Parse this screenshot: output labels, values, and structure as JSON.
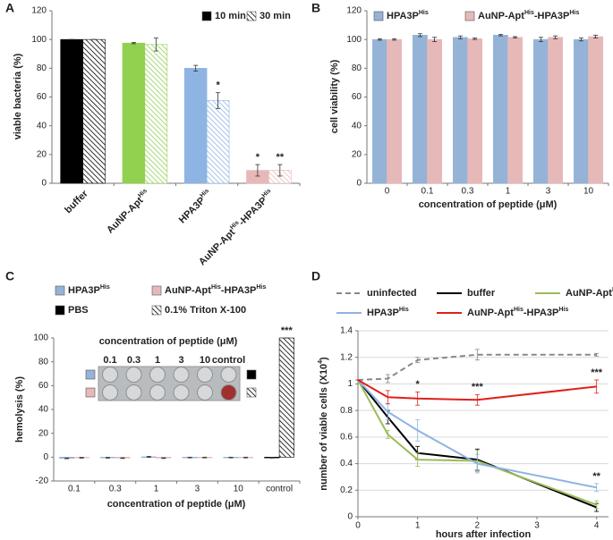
{
  "chart_data": [
    {
      "type": "bar",
      "panel": "A",
      "ylabel": "viable bacteria (%)",
      "categories": [
        "buffer",
        [
          "AuNP-Apt",
          "His"
        ],
        [
          "HPA3P",
          "His"
        ],
        [
          "AuNP-Apt",
          "His",
          "-HPA3P",
          "His"
        ]
      ],
      "series": [
        {
          "name": "10 min",
          "color": "#000000",
          "colors": [
            "#000000",
            "#92d050",
            "#8eb4e3",
            "#e6b9b8"
          ],
          "values": [
            100,
            97.5,
            80,
            9
          ],
          "errors": [
            0,
            0.5,
            2,
            4
          ],
          "annotations": [
            null,
            null,
            null,
            "*"
          ]
        },
        {
          "name": "30 min",
          "color": "#000000",
          "hatch": true,
          "colors": [
            "#000000",
            "#92d050",
            "#8eb4e3",
            "#e6b9b8"
          ],
          "values": [
            100,
            96.5,
            57.5,
            9
          ],
          "errors": [
            0,
            4.5,
            5.5,
            4
          ],
          "annotations": [
            null,
            null,
            "*",
            "**"
          ]
        }
      ],
      "ylim": [
        0,
        120
      ],
      "yticks": [
        0,
        20,
        40,
        60,
        80,
        100,
        120
      ]
    },
    {
      "type": "bar",
      "panel": "B",
      "ylabel": "cell viability (%)",
      "xlabel": "concentration of peptide (μM)",
      "categories": [
        "0",
        "0.1",
        "0.3",
        "1",
        "3",
        "10"
      ],
      "series": [
        {
          "name": [
            "HPA3P",
            "His"
          ],
          "color": "#95b3d7",
          "values": [
            100,
            103,
            101.5,
            103,
            100,
            100
          ],
          "errors": [
            0.5,
            1,
            1,
            0.5,
            1.5,
            1
          ]
        },
        {
          "name": [
            "AuNP-Apt",
            "His",
            "-HPA3P",
            "His"
          ],
          "color": "#e6b9b8",
          "values": [
            100,
            100,
            100.5,
            101.5,
            101.5,
            102
          ],
          "errors": [
            0.5,
            1.5,
            0.5,
            0.5,
            1,
            1
          ]
        }
      ],
      "ylim": [
        0,
        120
      ],
      "yticks": [
        0,
        20,
        40,
        60,
        80,
        100,
        120
      ]
    },
    {
      "type": "bar",
      "panel": "C",
      "ylabel": "hemolysis (%)",
      "xlabel": "concentration of peptide (μM)",
      "categories": [
        "0.1",
        "0.3",
        "1",
        "3",
        "10",
        "control"
      ],
      "series": [
        {
          "name": [
            "HPA3P",
            "His"
          ],
          "color": "#95b3d7",
          "values": [
            -1,
            -0.5,
            0.3,
            -0.3,
            -0.3,
            null
          ],
          "errors": [
            0.3,
            0.3,
            0.4,
            0.3,
            0.3,
            null
          ]
        },
        {
          "name": [
            "AuNP-Apt",
            "His",
            "-HPA3P",
            "His"
          ],
          "color": "#e6b9b8",
          "values": [
            -0.5,
            -0.8,
            -0.8,
            -0.3,
            -0.3,
            null
          ],
          "errors": [
            0.3,
            0.3,
            0.3,
            0.3,
            0.3,
            null
          ]
        },
        {
          "name": "PBS",
          "color": "#000000",
          "values": [
            null,
            null,
            null,
            null,
            null,
            -0.5
          ],
          "errors": [
            null,
            null,
            null,
            null,
            null,
            0.3
          ]
        },
        {
          "name": "0.1% Triton X-100",
          "color": "#000000",
          "hatch": true,
          "values": [
            null,
            null,
            null,
            null,
            null,
            100
          ],
          "errors": [
            null,
            null,
            null,
            null,
            null,
            0
          ],
          "annotations": [
            null,
            null,
            null,
            null,
            null,
            "***"
          ]
        }
      ],
      "inset": {
        "title": "concentration of peptide (μM)",
        "columns": [
          "0.1",
          "0.3",
          "1",
          "3",
          "10",
          "control"
        ]
      },
      "ylim": [
        -20,
        100
      ],
      "yticks": [
        -20,
        0,
        20,
        40,
        60,
        80,
        100
      ]
    },
    {
      "type": "line",
      "panel": "D",
      "ylabel": [
        "number of viable cells (X10",
        "4",
        ")"
      ],
      "xlabel": "hours after infection",
      "x": [
        0,
        0.5,
        1,
        2,
        4
      ],
      "series": [
        {
          "name": "uninfected",
          "color": "#888888",
          "dash": true,
          "values": [
            1.03,
            1.04,
            1.18,
            1.22,
            1.22
          ],
          "errors": [
            0,
            0.03,
            0.02,
            0.04,
            0.01
          ]
        },
        {
          "name": "buffer",
          "color": "#000000",
          "values": [
            1.03,
            0.75,
            0.48,
            0.43,
            0.07
          ],
          "errors": [
            0,
            0.05,
            0.05,
            0.08,
            0.03
          ]
        },
        {
          "name": [
            "AuNP-Apt",
            "His"
          ],
          "color": "#9bbb59",
          "values": [
            1.03,
            0.62,
            0.43,
            0.42,
            0.09
          ],
          "errors": [
            0,
            0.03,
            0.05,
            0.08,
            0.03
          ]
        },
        {
          "name": [
            "HPA3P",
            "His"
          ],
          "color": "#8db3e2",
          "values": [
            1.03,
            0.79,
            0.65,
            0.4,
            0.22
          ],
          "errors": [
            0,
            0.06,
            0.08,
            0.07,
            0.03
          ],
          "annotations": [
            null,
            null,
            null,
            null,
            "**"
          ]
        },
        {
          "name": [
            "AuNP-Apt",
            "His",
            "-HPA3P",
            "His"
          ],
          "color": "#e0201b",
          "values": [
            1.03,
            0.9,
            0.89,
            0.88,
            0.98
          ],
          "errors": [
            0,
            0.05,
            0.05,
            0.04,
            0.05
          ],
          "annotations": [
            null,
            null,
            "*",
            "***",
            "***"
          ]
        }
      ],
      "xlim": [
        0,
        4.2
      ],
      "xticks": [
        0,
        1,
        2,
        3,
        4
      ],
      "ylim": [
        0,
        1.4
      ],
      "yticks": [
        0,
        0.2,
        0.4,
        0.6,
        0.8,
        1,
        1.2,
        1.4
      ],
      "grid": true
    }
  ]
}
